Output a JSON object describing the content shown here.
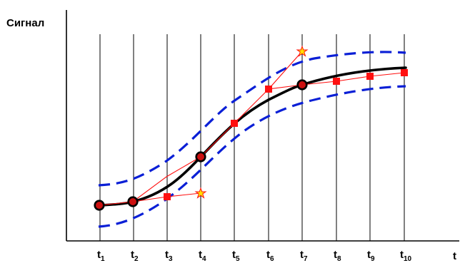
{
  "labels": {
    "y_axis": "Сигнал",
    "x_axis": "t",
    "time_points": [
      {
        "base": "t",
        "sub": "1"
      },
      {
        "base": "t",
        "sub": "2"
      },
      {
        "base": "t",
        "sub": "3"
      },
      {
        "base": "t",
        "sub": "4"
      },
      {
        "base": "t",
        "sub": "5"
      },
      {
        "base": "t",
        "sub": "6"
      },
      {
        "base": "t",
        "sub": "7"
      },
      {
        "base": "t",
        "sub": "8"
      },
      {
        "base": "t",
        "sub": "9"
      },
      {
        "base": "t",
        "sub": "10"
      }
    ]
  },
  "colors": {
    "axis": "#000000",
    "grid": "#000000",
    "trend_line": "#000000",
    "band": "#0a1fd6",
    "measurements": "#ff1010",
    "outlier_fill": "#ffe000",
    "key_point_fill": "#cc1010"
  }
}
